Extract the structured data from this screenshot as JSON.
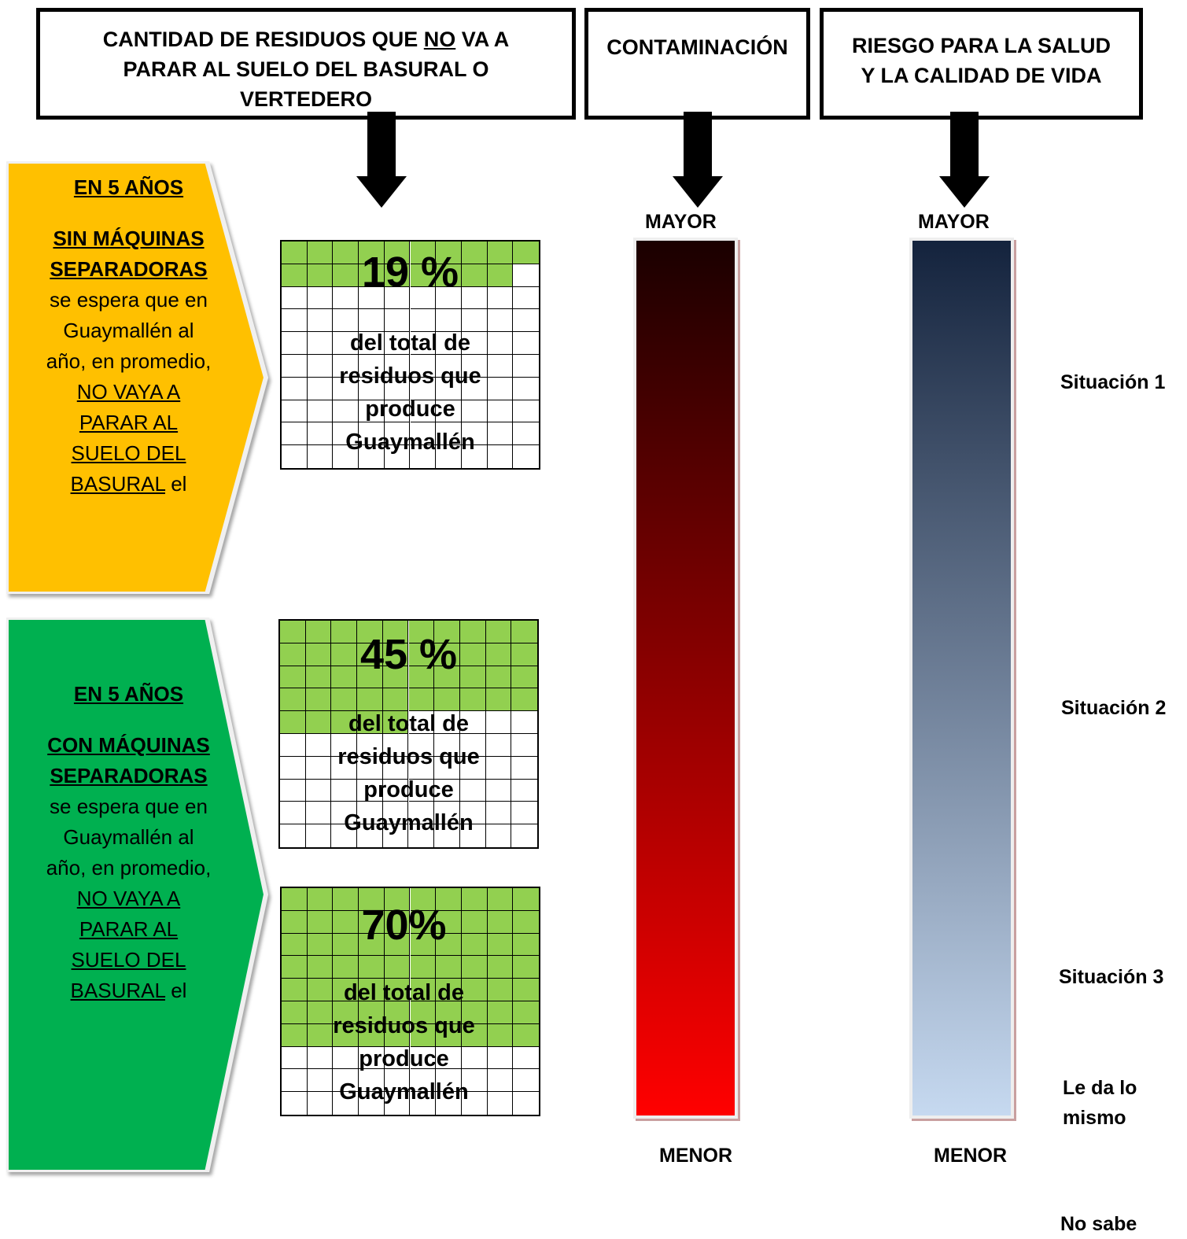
{
  "header": {
    "col1_pre": "CANTIDAD DE RESIDUOS QUE ",
    "col1_no": "NO",
    "col1_post1": " VA A",
    "col1_post2": "PARAR AL SUELO DEL BASURAL O",
    "col1_post3": "VERTEDERO",
    "col2": "CONTAMINACIÓN",
    "col3_line1": "RIESGO PARA LA SALUD",
    "col3_line2": "Y LA CALIDAD DE VIDA"
  },
  "scenario_without": {
    "years": "EN 5 AÑOS",
    "sep_line1": "SIN MÁQUINAS",
    "sep_line2": "SEPARADORAS",
    "line1": "se espera que en",
    "line2": "Guaymallén al",
    "line3": "año, en promedio,",
    "ul1": "NO VAYA A",
    "ul2": "PARAR AL",
    "ul3": "SUELO DEL",
    "ul4": "BASURAL",
    "tail": " el",
    "color": "#ffc000"
  },
  "scenario_with": {
    "years": "EN 5 AÑOS",
    "sep_line1": "CON MÁQUINAS",
    "sep_line2": "SEPARADORAS",
    "line1": "se espera que en",
    "line2": "Guaymallén al",
    "line3": "año, en promedio,",
    "ul1": "NO VAYA A",
    "ul2": "PARAR AL",
    "ul3": "SUELO DEL",
    "ul4": "BASURAL",
    "tail": " el",
    "color": "#00b050"
  },
  "grids": [
    {
      "pct": "19 %",
      "fraction": 0.19,
      "cap1": "del total de",
      "cap2": "residuos que",
      "cap3": "produce",
      "cap4": "Guaymallén"
    },
    {
      "pct": "45 %",
      "fraction": 0.45,
      "cap1": "del total de",
      "cap2": "residuos que",
      "cap3": "produce",
      "cap4": "Guaymallén"
    },
    {
      "pct": "70%",
      "fraction": 0.7,
      "cap1": "del total de",
      "cap2": "residuos que",
      "cap3": "produce",
      "cap4": "Guaymallén"
    }
  ],
  "grid_fill_color": "#92d050",
  "scales": {
    "contam": {
      "top": "MAYOR",
      "bottom": "MENOR",
      "from": "#1a0000",
      "to": "#ff0000"
    },
    "risk": {
      "top": "MAYOR",
      "bottom": "MENOR",
      "from": "#14233d",
      "to": "#c6d9f0"
    }
  },
  "situations": {
    "s1": "Situación 1",
    "s2": "Situación 2",
    "s3": "Situación 3",
    "same1": "Le da lo",
    "same2": "mismo",
    "dunno": "No sabe"
  }
}
